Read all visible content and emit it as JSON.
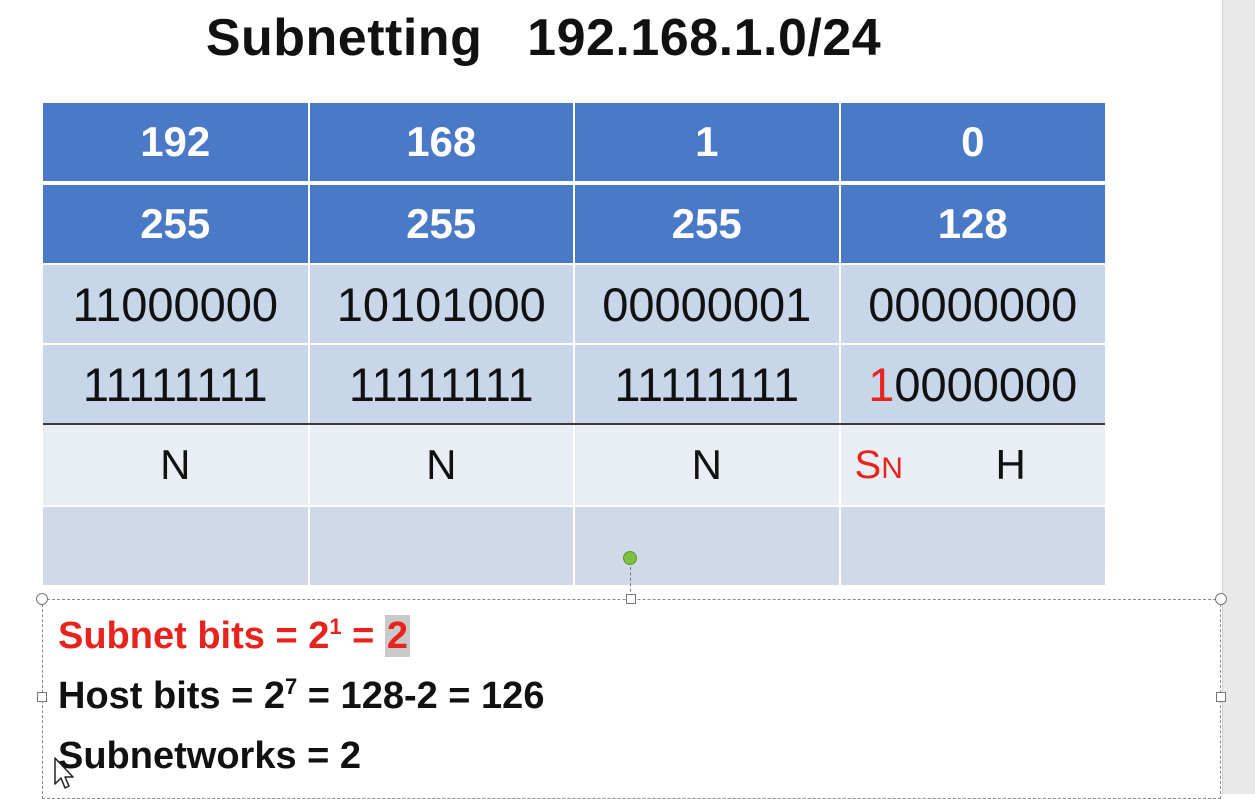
{
  "title": "Subnetting   192.168.1.0/24",
  "table": {
    "ip_octets": [
      "192",
      "168",
      "1",
      "0"
    ],
    "mask_octets": [
      "255",
      "255",
      "255",
      "128"
    ],
    "ip_binary": [
      "11000000",
      "10101000",
      "00000001",
      "00000000"
    ],
    "mask_binary": [
      "11111111",
      "11111111",
      "11111111"
    ],
    "mask_binary_last": {
      "borrowed_bit": "1",
      "rest": "0000000"
    },
    "labels": [
      "N",
      "N",
      "N"
    ],
    "last_label": {
      "sn_main": "S",
      "sn_sub": "N",
      "h": "H"
    }
  },
  "notes": {
    "subnet_bits": {
      "prefix": "Subnet bits = 2",
      "exp": "1",
      "eq": " = ",
      "result": "2"
    },
    "host_bits": {
      "prefix": "Host bits = 2",
      "exp": "7",
      "rest": " = 128-2 = 126"
    },
    "subnetworks": "Subnetworks = 2"
  },
  "colors": {
    "header_blue": "#4a7ac7",
    "binary_row": "#c8d6ea",
    "label_row": "#e9edf4",
    "accent_red": "#e8231d"
  }
}
